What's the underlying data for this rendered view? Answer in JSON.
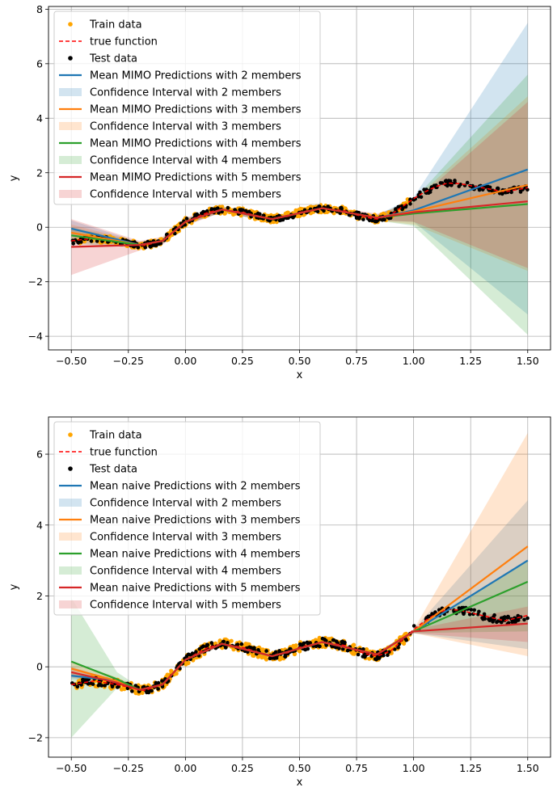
{
  "chart_data": [
    {
      "type": "line",
      "xlabel": "x",
      "ylabel": "y",
      "xlim": [
        -0.6,
        1.6
      ],
      "ylim": [
        -4.5,
        8.1
      ],
      "xticks": [
        -0.5,
        -0.25,
        0.0,
        0.25,
        0.5,
        0.75,
        1.0,
        1.25,
        1.5
      ],
      "xtick_labels": [
        "−0.50",
        "−0.25",
        "0.00",
        "0.25",
        "0.50",
        "0.75",
        "1.00",
        "1.25",
        "1.50"
      ],
      "yticks": [
        -4,
        -2,
        0,
        2,
        4,
        6,
        8
      ],
      "ytick_labels": [
        "−4",
        "−2",
        "0",
        "2",
        "4",
        "6",
        "8"
      ],
      "grid": true,
      "legend_position": "top-left",
      "legend": [
        {
          "label": "Train data",
          "kind": "dot",
          "color": "#ffa500"
        },
        {
          "label": "true function",
          "kind": "dash",
          "color": "#ff0000"
        },
        {
          "label": "Test data",
          "kind": "dot",
          "color": "#000000"
        },
        {
          "label": "Mean MIMO Predictions with 2 members",
          "kind": "line",
          "color": "#1f77b4"
        },
        {
          "label": "Confidence Interval with 2 members",
          "kind": "band",
          "color": "#1f77b4"
        },
        {
          "label": "Mean MIMO Predictions with 3 members",
          "kind": "line",
          "color": "#ff7f0e"
        },
        {
          "label": "Confidence Interval with 3 members",
          "kind": "band",
          "color": "#ff7f0e"
        },
        {
          "label": "Mean MIMO Predictions with 4 members",
          "kind": "line",
          "color": "#2ca02c"
        },
        {
          "label": "Confidence Interval with 4 members",
          "kind": "band",
          "color": "#2ca02c"
        },
        {
          "label": "Mean MIMO Predictions with 5 members",
          "kind": "line",
          "color": "#d62728"
        },
        {
          "label": "Confidence Interval with 5 members",
          "kind": "band",
          "color": "#d62728"
        }
      ],
      "true_function": {
        "x": [
          -0.5,
          -0.4,
          -0.3,
          -0.2,
          -0.18,
          -0.1,
          0.0,
          0.1,
          0.16,
          0.25,
          0.3,
          0.38,
          0.45,
          0.5,
          0.6,
          0.7,
          0.75,
          0.8,
          0.84,
          0.9,
          0.95,
          1.0,
          1.05,
          1.1,
          1.15,
          1.2,
          1.3,
          1.4,
          1.5
        ],
        "y": [
          -0.5,
          -0.4,
          -0.5,
          -0.65,
          -0.67,
          -0.5,
          0.2,
          0.55,
          0.65,
          0.55,
          0.45,
          0.3,
          0.4,
          0.55,
          0.7,
          0.6,
          0.45,
          0.35,
          0.3,
          0.45,
          0.75,
          1.05,
          1.3,
          1.5,
          1.62,
          1.6,
          1.45,
          1.3,
          1.45
        ]
      },
      "series": [
        {
          "members": 2,
          "color": "#1f77b4",
          "x": [
            -0.5,
            -0.2,
            -0.1,
            0.0,
            0.16,
            0.38,
            0.6,
            0.84,
            1.0,
            1.5
          ],
          "mean": [
            -0.05,
            -0.65,
            -0.5,
            0.2,
            0.65,
            0.3,
            0.7,
            0.35,
            0.62,
            2.12
          ],
          "lower": [
            -0.35,
            -0.75,
            -0.6,
            0.1,
            0.55,
            0.2,
            0.6,
            0.25,
            0.2,
            -3.2
          ],
          "upper": [
            0.25,
            -0.55,
            -0.4,
            0.3,
            0.75,
            0.4,
            0.8,
            0.45,
            1.1,
            7.5
          ]
        },
        {
          "members": 3,
          "color": "#ff7f0e",
          "x": [
            -0.5,
            -0.2,
            -0.1,
            0.0,
            0.16,
            0.38,
            0.6,
            0.84,
            1.0,
            1.5
          ],
          "mean": [
            -0.2,
            -0.65,
            -0.5,
            0.2,
            0.65,
            0.3,
            0.7,
            0.35,
            0.58,
            1.55
          ],
          "lower": [
            -0.5,
            -0.75,
            -0.6,
            0.1,
            0.55,
            0.2,
            0.6,
            0.25,
            0.1,
            -1.6
          ],
          "upper": [
            0.1,
            -0.55,
            -0.4,
            0.3,
            0.75,
            0.4,
            0.8,
            0.45,
            1.0,
            4.8
          ]
        },
        {
          "members": 4,
          "color": "#2ca02c",
          "x": [
            -0.5,
            -0.2,
            -0.1,
            0.0,
            0.16,
            0.38,
            0.6,
            0.84,
            1.0,
            1.5
          ],
          "mean": [
            -0.3,
            -0.65,
            -0.5,
            0.2,
            0.65,
            0.3,
            0.7,
            0.35,
            0.5,
            0.85
          ],
          "lower": [
            -0.6,
            -0.75,
            -0.6,
            0.1,
            0.55,
            0.2,
            0.6,
            0.25,
            0.05,
            -3.95
          ],
          "upper": [
            0.0,
            -0.55,
            -0.4,
            0.3,
            0.75,
            0.4,
            0.8,
            0.45,
            1.0,
            5.6
          ]
        },
        {
          "members": 5,
          "color": "#d62728",
          "x": [
            -0.5,
            -0.2,
            -0.1,
            0.0,
            0.16,
            0.38,
            0.6,
            0.84,
            1.0,
            1.5
          ],
          "mean": [
            -0.72,
            -0.65,
            -0.5,
            0.2,
            0.65,
            0.3,
            0.7,
            0.35,
            0.55,
            0.95
          ],
          "lower": [
            -1.75,
            -0.85,
            -0.65,
            0.05,
            0.55,
            0.2,
            0.6,
            0.25,
            0.2,
            -1.5
          ],
          "upper": [
            0.3,
            -0.5,
            -0.35,
            0.35,
            0.75,
            0.4,
            0.8,
            0.5,
            0.9,
            4.6
          ]
        }
      ]
    },
    {
      "type": "line",
      "xlabel": "x",
      "ylabel": "y",
      "xlim": [
        -0.6,
        1.6
      ],
      "ylim": [
        -2.55,
        7.05
      ],
      "xticks": [
        -0.5,
        -0.25,
        0.0,
        0.25,
        0.5,
        0.75,
        1.0,
        1.25,
        1.5
      ],
      "xtick_labels": [
        "−0.50",
        "−0.25",
        "0.00",
        "0.25",
        "0.50",
        "0.75",
        "1.00",
        "1.25",
        "1.50"
      ],
      "yticks": [
        -2,
        0,
        2,
        4,
        6
      ],
      "ytick_labels": [
        "−2",
        "0",
        "2",
        "4",
        "6"
      ],
      "grid": true,
      "legend_position": "top-left",
      "legend": [
        {
          "label": "Train data",
          "kind": "dot",
          "color": "#ffa500"
        },
        {
          "label": "true function",
          "kind": "dash",
          "color": "#ff0000"
        },
        {
          "label": "Test data",
          "kind": "dot",
          "color": "#000000"
        },
        {
          "label": "Mean naive Predictions with 2 members",
          "kind": "line",
          "color": "#1f77b4"
        },
        {
          "label": "Confidence Interval with 2 members",
          "kind": "band",
          "color": "#1f77b4"
        },
        {
          "label": "Mean naive Predictions with 3 members",
          "kind": "line",
          "color": "#ff7f0e"
        },
        {
          "label": "Confidence Interval with 3 members",
          "kind": "band",
          "color": "#ff7f0e"
        },
        {
          "label": "Mean naive Predictions with 4 members",
          "kind": "line",
          "color": "#2ca02c"
        },
        {
          "label": "Confidence Interval with 4 members",
          "kind": "band",
          "color": "#2ca02c"
        },
        {
          "label": "Mean naive Predictions with 5 members",
          "kind": "line",
          "color": "#d62728"
        },
        {
          "label": "Confidence Interval with 5 members",
          "kind": "band",
          "color": "#d62728"
        }
      ],
      "true_function": {
        "x": [
          -0.5,
          -0.4,
          -0.3,
          -0.2,
          -0.18,
          -0.1,
          0.0,
          0.1,
          0.16,
          0.25,
          0.3,
          0.38,
          0.45,
          0.5,
          0.6,
          0.7,
          0.75,
          0.8,
          0.84,
          0.9,
          0.95,
          1.0,
          1.05,
          1.1,
          1.15,
          1.2,
          1.3,
          1.4,
          1.5
        ],
        "y": [
          -0.5,
          -0.4,
          -0.5,
          -0.65,
          -0.67,
          -0.5,
          0.2,
          0.55,
          0.65,
          0.55,
          0.45,
          0.3,
          0.4,
          0.55,
          0.7,
          0.6,
          0.45,
          0.35,
          0.3,
          0.45,
          0.75,
          1.05,
          1.3,
          1.5,
          1.62,
          1.6,
          1.45,
          1.3,
          1.45
        ]
      },
      "series": [
        {
          "members": 2,
          "color": "#1f77b4",
          "x": [
            -0.5,
            -0.3,
            -0.2,
            -0.1,
            0.0,
            0.16,
            0.38,
            0.6,
            0.84,
            1.0,
            1.5
          ],
          "mean": [
            -0.25,
            -0.4,
            -0.65,
            -0.5,
            0.2,
            0.65,
            0.3,
            0.7,
            0.35,
            1.0,
            3.0
          ],
          "lower": [
            -0.35,
            -0.45,
            -0.72,
            -0.55,
            0.15,
            0.6,
            0.25,
            0.65,
            0.3,
            0.95,
            0.5
          ],
          "upper": [
            -0.15,
            -0.35,
            -0.58,
            -0.45,
            0.25,
            0.7,
            0.35,
            0.75,
            0.4,
            1.05,
            4.7
          ]
        },
        {
          "members": 3,
          "color": "#ff7f0e",
          "x": [
            -0.5,
            -0.3,
            -0.2,
            -0.1,
            0.0,
            0.16,
            0.38,
            0.6,
            0.84,
            1.0,
            1.5
          ],
          "mean": [
            -0.05,
            -0.4,
            -0.65,
            -0.5,
            0.2,
            0.65,
            0.3,
            0.7,
            0.35,
            1.0,
            3.4
          ],
          "lower": [
            -0.25,
            -0.5,
            -0.72,
            -0.55,
            0.15,
            0.6,
            0.25,
            0.65,
            0.3,
            0.95,
            0.3
          ],
          "upper": [
            0.15,
            -0.3,
            -0.58,
            -0.45,
            0.25,
            0.7,
            0.35,
            0.75,
            0.4,
            1.05,
            6.6
          ]
        },
        {
          "members": 4,
          "color": "#2ca02c",
          "x": [
            -0.5,
            -0.3,
            -0.2,
            -0.1,
            0.0,
            0.16,
            0.38,
            0.6,
            0.84,
            1.0,
            1.5
          ],
          "mean": [
            0.15,
            -0.35,
            -0.65,
            -0.5,
            0.2,
            0.65,
            0.3,
            0.7,
            0.35,
            1.0,
            2.4
          ],
          "lower": [
            -2.0,
            -0.6,
            -0.72,
            -0.55,
            0.15,
            0.6,
            0.25,
            0.65,
            0.3,
            0.95,
            1.0
          ],
          "upper": [
            1.95,
            -0.15,
            -0.58,
            -0.45,
            0.25,
            0.7,
            0.35,
            0.75,
            0.4,
            1.05,
            3.0
          ]
        },
        {
          "members": 5,
          "color": "#d62728",
          "x": [
            -0.5,
            -0.3,
            -0.2,
            -0.1,
            0.0,
            0.16,
            0.38,
            0.6,
            0.84,
            1.0,
            1.5
          ],
          "mean": [
            -0.15,
            -0.45,
            -0.65,
            -0.5,
            0.2,
            0.65,
            0.3,
            0.7,
            0.35,
            1.0,
            1.22
          ],
          "lower": [
            -0.3,
            -0.5,
            -0.72,
            -0.55,
            0.15,
            0.6,
            0.25,
            0.65,
            0.3,
            0.95,
            0.7
          ],
          "upper": [
            0.0,
            -0.4,
            -0.58,
            -0.45,
            0.25,
            0.7,
            0.35,
            0.75,
            0.4,
            1.05,
            1.7
          ]
        }
      ]
    }
  ]
}
